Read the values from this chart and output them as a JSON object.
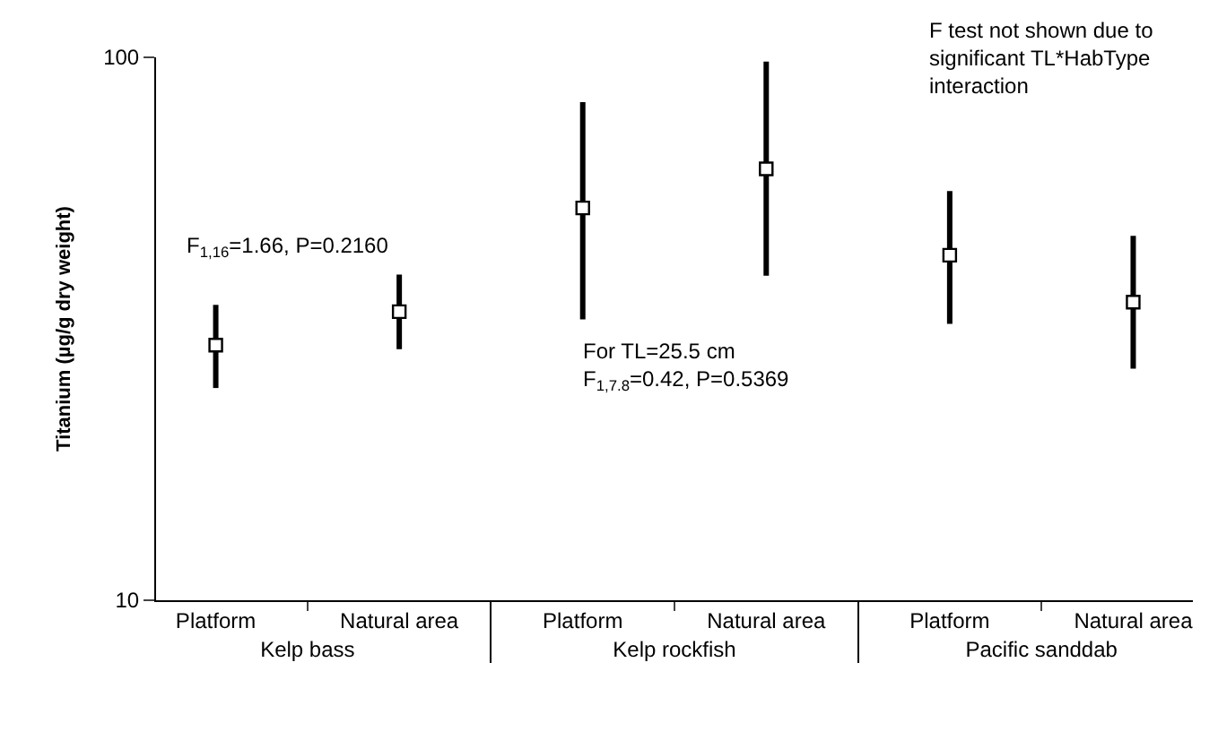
{
  "chart_data": {
    "type": "scatter",
    "ylabel": "Titanium (µg/g dry weight)",
    "categories": [
      "Platform",
      "Natural area",
      "Platform",
      "Natural area",
      "Platform",
      "Natural area"
    ],
    "values": [
      29.5,
      34.0,
      52.8,
      62.3,
      43.2,
      35.4
    ],
    "errors": [
      [
        24.6,
        35.0
      ],
      [
        29.0,
        39.8
      ],
      [
        32.9,
        82.7
      ],
      [
        39.6,
        98.2
      ],
      [
        32.3,
        56.7
      ],
      [
        26.7,
        46.9
      ]
    ],
    "color": "#000000",
    "marker": "square",
    "log": true,
    "ylim": [
      10,
      100
    ],
    "yticks": [
      10,
      100
    ],
    "annotations": [
      "F$_{1,16}$=1.66, P=0.2160",
      "For TL=25.5 cm\nF$_{1,7.8}$=0.42, P=0.5369",
      "F test not shown due to\nsignificant TL*HabType\ninteraction",
      {
        "text": "Kelp bass"
      },
      {
        "text": "Kelp rockfish"
      },
      {
        "text": "Pacific sanddab"
      }
    ]
  }
}
